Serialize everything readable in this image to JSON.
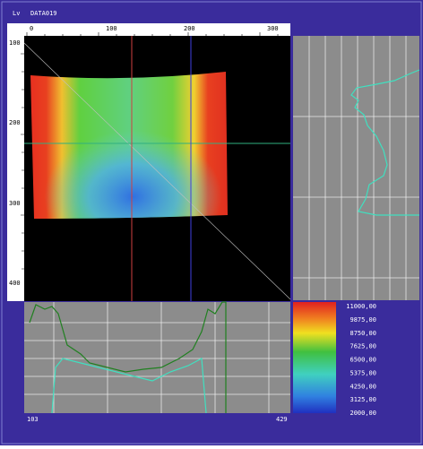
{
  "window": {
    "title_left": "Lv",
    "title": "DATA019"
  },
  "top_ruler": {
    "labels": [
      "0",
      "100",
      "200",
      "300"
    ]
  },
  "left_ruler": {
    "labels": [
      "100",
      "200",
      "300",
      "400"
    ]
  },
  "color_scale": {
    "labels": [
      "11000,00",
      "9875,00",
      "8750,00",
      "7625,00",
      "6500,00",
      "5375,00",
      "4250,00",
      "3125,00",
      "2000,00"
    ]
  },
  "bottom_profile": {
    "start_label": "103",
    "end_label": "429"
  }
}
